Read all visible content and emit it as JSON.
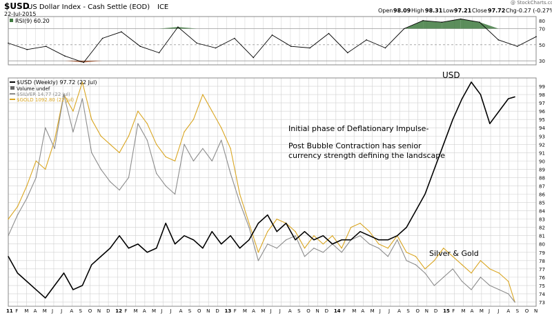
{
  "header": {
    "symbol": "$USD",
    "name": "US Dollar Index - Cash Settle (EOD)",
    "exchange": "ICE",
    "date": "22-Jul-2015",
    "watermark": "@ StockCharts.com",
    "quote": {
      "open_label": "Open",
      "open_value": "98.09",
      "high_label": "High",
      "high_value": "98.31",
      "low_label": "Low",
      "low_value": "97.21",
      "close_label": "Close",
      "close_value": "97.72",
      "chg_label": "Chg",
      "chg_value": "-0.27 (-0.27%)"
    }
  },
  "annotations": {
    "usd": "USD",
    "line1": "Initial phase of Deflationary Impulse-",
    "line2": "Post Bubble Contraction has senior",
    "line3": "currency strength defining the landscape",
    "metals": "Silver & Gold"
  },
  "colors": {
    "usd": "#000000",
    "silver": "#8c8c8c",
    "gold": "#d9a520",
    "grid": "#cccccc",
    "rsi_over": "#3f7a3f",
    "rsi_under": "#a0522d"
  },
  "chart_data": [
    {
      "type": "line",
      "title": "RSI(9) 60.20",
      "legend": "RSI(9) 60.20",
      "ylim": [
        25,
        85
      ],
      "yticks": [
        30,
        50,
        70,
        80
      ],
      "reference_lines": [
        30,
        50,
        70
      ],
      "x": [
        0,
        2,
        4,
        6,
        8,
        10,
        12,
        14,
        16,
        18,
        20,
        22,
        24,
        26,
        28,
        30,
        32,
        34,
        36,
        38,
        40,
        42,
        44,
        46,
        48,
        50,
        52,
        54,
        56
      ],
      "values": [
        52,
        44,
        48,
        36,
        28,
        58,
        66,
        48,
        40,
        72,
        52,
        46,
        58,
        34,
        62,
        48,
        46,
        64,
        40,
        56,
        46,
        70,
        80,
        78,
        82,
        78,
        56,
        48,
        60
      ]
    },
    {
      "type": "line",
      "title": "$USD (Weekly)",
      "legend_position": "top-left",
      "xlabel": "",
      "ylabel": "",
      "ylim": [
        72.5,
        100
      ],
      "yticks": [
        73,
        74,
        75,
        76,
        77,
        78,
        79,
        80,
        81,
        82,
        83,
        84,
        85,
        86,
        87,
        88,
        89,
        90,
        91,
        92,
        93,
        94,
        95,
        96,
        97,
        98,
        99
      ],
      "xlim": [
        0,
        57
      ],
      "x_tick_labels": [
        "11",
        "F",
        "M",
        "A",
        "M",
        "J",
        "J",
        "A",
        "S",
        "O",
        "N",
        "D",
        "12",
        "F",
        "M",
        "A",
        "M",
        "J",
        "J",
        "A",
        "S",
        "O",
        "N",
        "D",
        "13",
        "F",
        "M",
        "A",
        "M",
        "J",
        "J",
        "A",
        "S",
        "O",
        "N",
        "D",
        "14",
        "F",
        "M",
        "A",
        "M",
        "J",
        "J",
        "A",
        "S",
        "O",
        "N",
        "D",
        "15",
        "F",
        "M",
        "A",
        "M",
        "J",
        "J",
        "A",
        "S",
        "O",
        "N"
      ],
      "series": [
        {
          "name": "$USD (Weekly) 97.72 (22 Jul)",
          "color": "#000000",
          "x": [
            0,
            1,
            2,
            3,
            4,
            5,
            6,
            7,
            8,
            9,
            10,
            11,
            12,
            13,
            14,
            15,
            16,
            17,
            18,
            19,
            20,
            21,
            22,
            23,
            24,
            25,
            26,
            27,
            28,
            29,
            30,
            31,
            32,
            33,
            34,
            35,
            36,
            37,
            38,
            39,
            40,
            41,
            42,
            43,
            44,
            45,
            46,
            47,
            48,
            49,
            50,
            51,
            52,
            53,
            54,
            54.7
          ],
          "values": [
            78.5,
            76.5,
            75.5,
            74.5,
            73.5,
            75.0,
            76.5,
            74.5,
            75.0,
            77.5,
            78.5,
            79.5,
            81.0,
            79.5,
            80.0,
            79.0,
            79.5,
            82.5,
            80.0,
            81.0,
            80.5,
            79.5,
            81.5,
            80.0,
            81.0,
            79.5,
            80.5,
            82.5,
            83.5,
            81.5,
            82.5,
            80.5,
            81.5,
            80.5,
            81.0,
            80.0,
            80.5,
            80.5,
            81.5,
            81.0,
            80.5,
            80.5,
            81.0,
            82.0,
            84.0,
            86.0,
            89.0,
            92.0,
            95.0,
            97.5,
            99.5,
            98.0,
            94.5,
            96.0,
            97.5,
            97.72
          ]
        },
        {
          "name": "$SILVER 14.77 (22 Jul)",
          "color": "#8c8c8c",
          "x": [
            0,
            1,
            2,
            3,
            4,
            5,
            6,
            7,
            8,
            9,
            10,
            11,
            12,
            13,
            14,
            15,
            16,
            17,
            18,
            19,
            20,
            21,
            22,
            23,
            24,
            25,
            26,
            27,
            28,
            29,
            30,
            31,
            32,
            33,
            34,
            35,
            36,
            37,
            38,
            39,
            40,
            41,
            42,
            43,
            44,
            45,
            46,
            47,
            48,
            49,
            50,
            51,
            52,
            53,
            54,
            54.7
          ],
          "values": [
            81.0,
            83.5,
            85.5,
            88.0,
            94.0,
            91.5,
            98.0,
            93.5,
            97.5,
            91.0,
            89.0,
            87.5,
            86.5,
            88.0,
            94.5,
            92.5,
            88.5,
            87.0,
            86.0,
            92.0,
            90.0,
            91.5,
            90.0,
            92.5,
            88.5,
            85.0,
            82.0,
            78.0,
            80.0,
            79.5,
            80.5,
            81.0,
            78.5,
            79.5,
            79.0,
            80.0,
            79.0,
            80.5,
            81.0,
            80.0,
            79.5,
            78.5,
            80.5,
            78.0,
            77.5,
            76.5,
            75.0,
            76.0,
            77.0,
            75.5,
            74.5,
            76.0,
            75.0,
            74.5,
            74.0,
            73.0
          ]
        },
        {
          "name": "$GOLD 1092.80 (22 Jul)",
          "color": "#d9a520",
          "x": [
            0,
            1,
            2,
            3,
            4,
            5,
            6,
            7,
            8,
            9,
            10,
            11,
            12,
            13,
            14,
            15,
            16,
            17,
            18,
            19,
            20,
            21,
            22,
            23,
            24,
            25,
            26,
            27,
            28,
            29,
            30,
            31,
            32,
            33,
            34,
            35,
            36,
            37,
            38,
            39,
            40,
            41,
            42,
            43,
            44,
            45,
            46,
            47,
            48,
            49,
            50,
            51,
            52,
            53,
            54,
            54.7
          ],
          "values": [
            83.0,
            84.5,
            87.0,
            90.0,
            89.0,
            92.5,
            98.0,
            96.0,
            99.5,
            95.0,
            93.0,
            92.0,
            91.0,
            93.0,
            96.0,
            94.5,
            92.0,
            90.5,
            90.0,
            93.5,
            95.0,
            98.0,
            96.0,
            94.0,
            91.5,
            86.0,
            82.5,
            79.0,
            81.5,
            83.0,
            82.5,
            81.5,
            79.5,
            81.0,
            80.0,
            81.0,
            79.5,
            82.0,
            82.5,
            81.5,
            80.0,
            79.5,
            81.0,
            79.0,
            78.5,
            77.0,
            78.0,
            79.5,
            78.5,
            77.5,
            76.5,
            78.0,
            77.0,
            76.5,
            75.5,
            73.0
          ]
        },
        {
          "name": "Volume undef",
          "color": "#000000",
          "x": [],
          "values": []
        }
      ]
    }
  ]
}
